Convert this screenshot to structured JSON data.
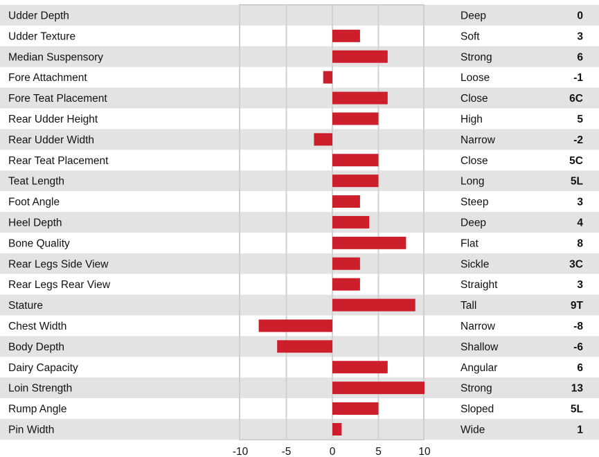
{
  "chart_data": {
    "type": "bar",
    "orientation": "horizontal",
    "xlim": [
      -10,
      10
    ],
    "x_ticks": [
      "-10",
      "-5",
      "0",
      "5",
      "10"
    ],
    "grid": true,
    "bar_color": "#cc1f2b",
    "stripe_color": "#e3e3e3",
    "rows": [
      {
        "trait": "Udder Depth",
        "value": 0,
        "descriptor": "Deep",
        "score": "0"
      },
      {
        "trait": "Udder Texture",
        "value": 3,
        "descriptor": "Soft",
        "score": "3"
      },
      {
        "trait": "Median Suspensory",
        "value": 6,
        "descriptor": "Strong",
        "score": "6"
      },
      {
        "trait": "Fore Attachment",
        "value": -1,
        "descriptor": "Loose",
        "score": "-1"
      },
      {
        "trait": "Fore Teat Placement",
        "value": 6,
        "descriptor": "Close",
        "score": "6C"
      },
      {
        "trait": "Rear Udder Height",
        "value": 5,
        "descriptor": "High",
        "score": "5"
      },
      {
        "trait": "Rear Udder Width",
        "value": -2,
        "descriptor": "Narrow",
        "score": "-2"
      },
      {
        "trait": "Rear Teat Placement",
        "value": 5,
        "descriptor": "Close",
        "score": "5C"
      },
      {
        "trait": "Teat Length",
        "value": 5,
        "descriptor": "Long",
        "score": "5L"
      },
      {
        "trait": "Foot Angle",
        "value": 3,
        "descriptor": "Steep",
        "score": "3"
      },
      {
        "trait": "Heel Depth",
        "value": 4,
        "descriptor": "Deep",
        "score": "4"
      },
      {
        "trait": "Bone Quality",
        "value": 8,
        "descriptor": "Flat",
        "score": "8"
      },
      {
        "trait": "Rear Legs Side View",
        "value": 3,
        "descriptor": "Sickle",
        "score": "3C"
      },
      {
        "trait": "Rear Legs Rear View",
        "value": 3,
        "descriptor": "Straight",
        "score": "3"
      },
      {
        "trait": "Stature",
        "value": 9,
        "descriptor": "Tall",
        "score": "9T"
      },
      {
        "trait": "Chest Width",
        "value": -8,
        "descriptor": "Narrow",
        "score": "-8"
      },
      {
        "trait": "Body Depth",
        "value": -6,
        "descriptor": "Shallow",
        "score": "-6"
      },
      {
        "trait": "Dairy Capacity",
        "value": 6,
        "descriptor": "Angular",
        "score": "6"
      },
      {
        "trait": "Loin Strength",
        "value": 13,
        "descriptor": "Strong",
        "score": "13"
      },
      {
        "trait": "Rump Angle",
        "value": 5,
        "descriptor": "Sloped",
        "score": "5L"
      },
      {
        "trait": "Pin Width",
        "value": 1,
        "descriptor": "Wide",
        "score": "1"
      }
    ]
  }
}
